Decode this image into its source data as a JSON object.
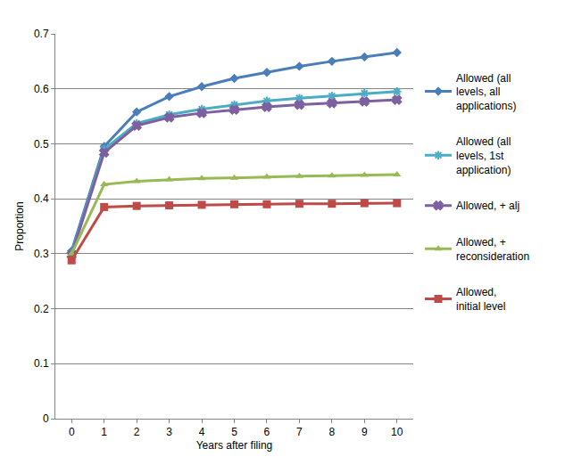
{
  "chart_data": {
    "type": "line",
    "x_label": "Years after filing",
    "y_label": "Proportion",
    "x": [
      0,
      1,
      2,
      3,
      4,
      5,
      6,
      7,
      8,
      9,
      10
    ],
    "xlim": [
      -0.5,
      10.5
    ],
    "xticks": [
      0,
      1,
      2,
      3,
      4,
      5,
      6,
      7,
      8,
      9,
      10
    ],
    "ylim": [
      0,
      0.7
    ],
    "yticks": [
      {
        "value": 0,
        "label": "0"
      },
      0.1,
      0.2,
      0.3,
      0.4,
      0.5,
      0.6,
      0.7
    ],
    "grid": "y",
    "legend": "right",
    "series": [
      {
        "name": "Allowed (all levels, all applications)",
        "color": "#4a7ebb",
        "marker": "diamond",
        "values": [
          0.305,
          0.495,
          0.558,
          0.586,
          0.604,
          0.619,
          0.63,
          0.641,
          0.65,
          0.658,
          0.666
        ]
      },
      {
        "name": "Allowed (all levels, 1st application)",
        "color": "#4bacc6",
        "marker": "asterisk-open",
        "values": [
          0.3,
          0.49,
          0.537,
          0.553,
          0.563,
          0.571,
          0.578,
          0.583,
          0.587,
          0.592,
          0.595
        ]
      },
      {
        "name": "Allowed, + alj",
        "color": "#7d60a0",
        "marker": "x",
        "values": [
          0.298,
          0.484,
          0.533,
          0.548,
          0.556,
          0.562,
          0.567,
          0.571,
          0.574,
          0.577,
          0.58
        ]
      },
      {
        "name": "Allowed, + reconsideration",
        "color": "#98b954",
        "marker": "triangle-up",
        "values": [
          0.3,
          0.426,
          0.432,
          0.435,
          0.437,
          0.438,
          0.44,
          0.441,
          0.442,
          0.443,
          0.444
        ]
      },
      {
        "name": "Allowed, initial level",
        "color": "#be4b48",
        "marker": "square",
        "values": [
          0.288,
          0.385,
          0.387,
          0.388,
          0.389,
          0.39,
          0.39,
          0.391,
          0.391,
          0.392,
          0.392
        ]
      }
    ]
  }
}
